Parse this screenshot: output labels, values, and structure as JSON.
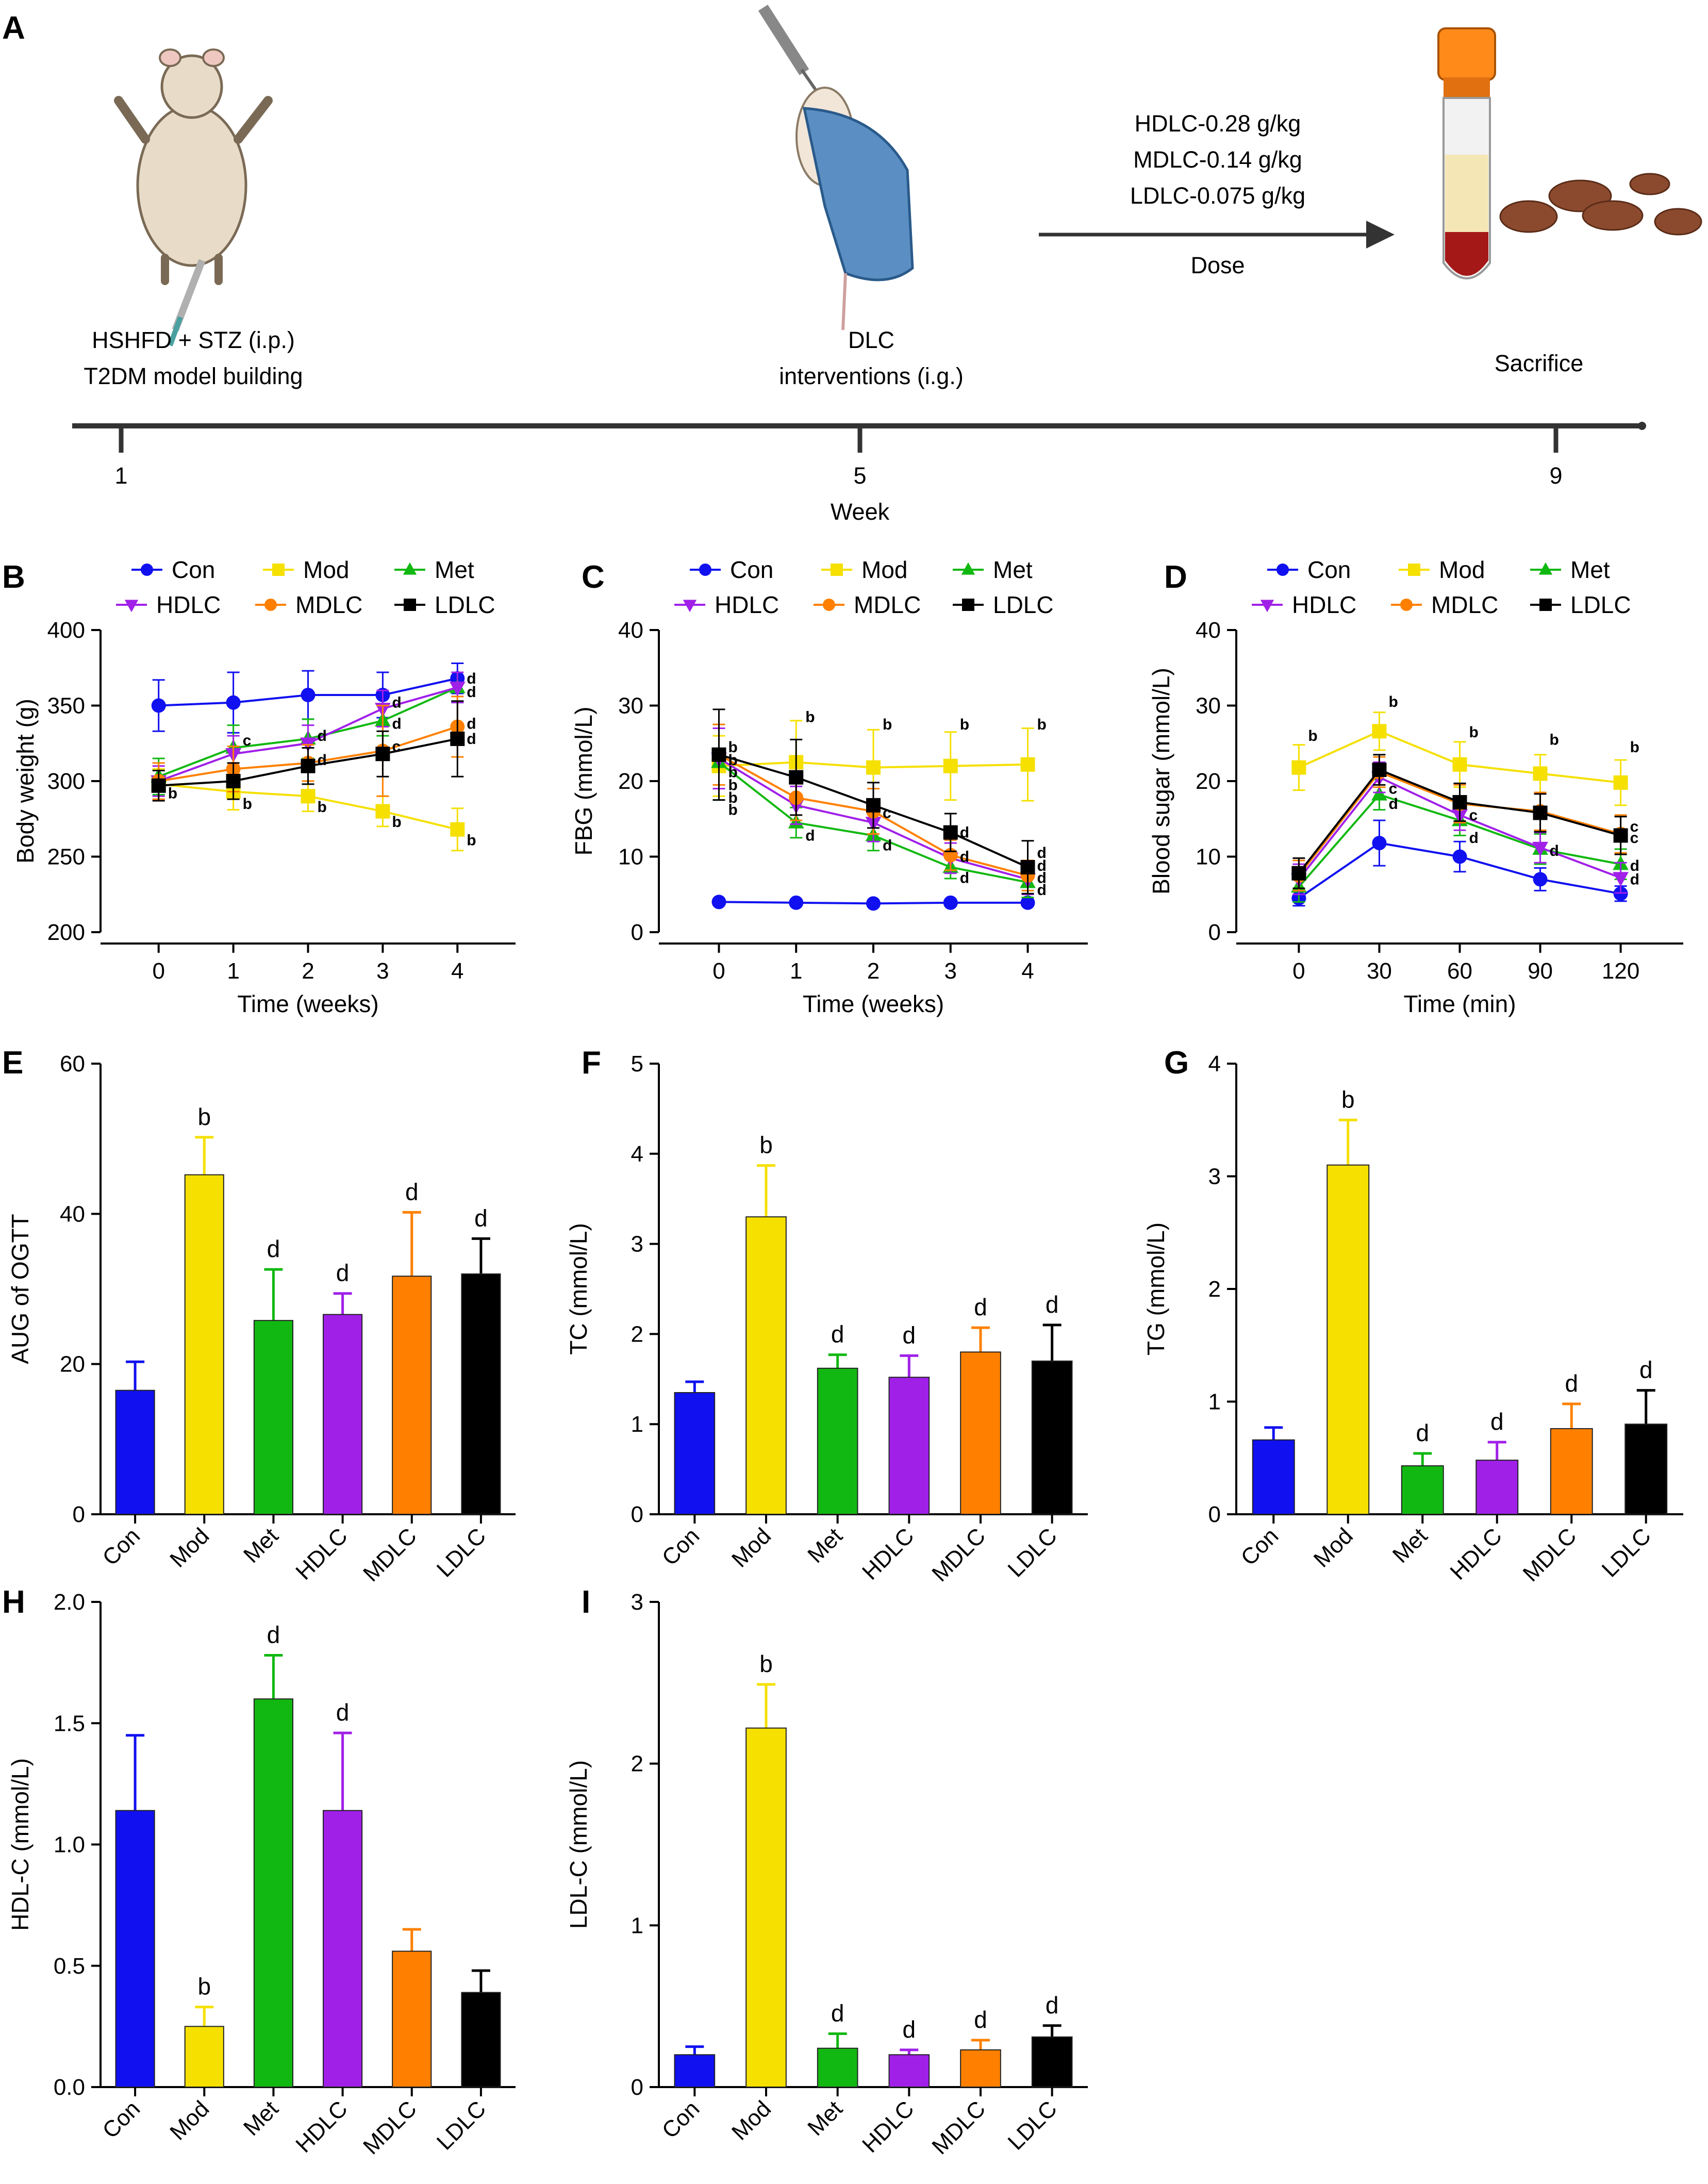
{
  "colors": {
    "Con": "#1010f0",
    "Mod": "#f5e000",
    "Met": "#12b812",
    "HDLC": "#a020e8",
    "MDLC": "#ff8000",
    "LDLC": "#000000"
  },
  "panel_a": {
    "label": "A",
    "step1_line1": "HSHFD + STZ (i.p.)",
    "step1_line2": "T2DM model building",
    "step2_line1": "DLC",
    "step2_line2": "interventions (i.g.)",
    "step3": "Sacrifice",
    "dose_lines": [
      "HDLC-0.28 g/kg",
      "MDLC-0.14 g/kg",
      "LDLC-0.075 g/kg"
    ],
    "dose_label": "Dose",
    "week_ticks": [
      "1",
      "5",
      "9"
    ],
    "week_label": "Week"
  },
  "chart_data": [
    {
      "id": "B",
      "type": "line",
      "xlabel": "Time (weeks)",
      "ylabel": "Body weight (g)",
      "x": [
        0,
        1,
        2,
        3,
        4
      ],
      "xticks": [
        "0",
        "1",
        "2",
        "3",
        "4"
      ],
      "ylim": [
        200,
        400
      ],
      "yticks": [
        200,
        250,
        300,
        350,
        400
      ],
      "series": [
        {
          "name": "Con",
          "marker": "circle",
          "values": [
            350,
            352,
            357,
            357,
            368
          ],
          "err": [
            17,
            20,
            16,
            15,
            10
          ]
        },
        {
          "name": "Mod",
          "marker": "square",
          "values": [
            298,
            293,
            290,
            280,
            268
          ],
          "err": [
            10,
            12,
            10,
            10,
            14
          ]
        },
        {
          "name": "Met",
          "marker": "triangle",
          "values": [
            303,
            322,
            328,
            340,
            362
          ],
          "err": [
            12,
            15,
            13,
            10,
            10
          ]
        },
        {
          "name": "HDLC",
          "marker": "triangle-down",
          "values": [
            300,
            318,
            325,
            348,
            362
          ],
          "err": [
            10,
            12,
            12,
            12,
            10
          ]
        },
        {
          "name": "MDLC",
          "marker": "circle",
          "values": [
            300,
            308,
            312,
            320,
            336
          ],
          "err": [
            12,
            15,
            12,
            30,
            20
          ]
        },
        {
          "name": "LDLC",
          "marker": "square",
          "values": [
            297,
            300,
            310,
            318,
            328
          ],
          "err": [
            10,
            12,
            12,
            15,
            25
          ]
        }
      ],
      "annotations": [
        {
          "x": 0,
          "y": 292,
          "text": "b"
        },
        {
          "x": 1,
          "y": 285,
          "text": "b"
        },
        {
          "x": 2,
          "y": 283,
          "text": "b"
        },
        {
          "x": 3,
          "y": 273,
          "text": "b"
        },
        {
          "x": 4,
          "y": 261,
          "text": "b"
        },
        {
          "x": 1,
          "y": 327,
          "text": "c"
        },
        {
          "x": 2,
          "y": 330,
          "text": "d"
        },
        {
          "x": 2,
          "y": 314,
          "text": "d"
        },
        {
          "x": 3,
          "y": 352,
          "text": "d"
        },
        {
          "x": 3,
          "y": 338,
          "text": "d"
        },
        {
          "x": 3,
          "y": 323,
          "text": "c"
        },
        {
          "x": 4,
          "y": 368,
          "text": "d"
        },
        {
          "x": 4,
          "y": 359,
          "text": "d"
        },
        {
          "x": 4,
          "y": 338,
          "text": "d"
        },
        {
          "x": 4,
          "y": 328,
          "text": "d"
        }
      ]
    },
    {
      "id": "C",
      "type": "line",
      "xlabel": "Time (weeks)",
      "ylabel": "FBG (mmol/L)",
      "x": [
        0,
        1,
        2,
        3,
        4
      ],
      "xticks": [
        "0",
        "1",
        "2",
        "3",
        "4"
      ],
      "ylim": [
        0,
        40
      ],
      "yticks": [
        0,
        10,
        20,
        30,
        40
      ],
      "series": [
        {
          "name": "Con",
          "marker": "circle",
          "values": [
            4.0,
            3.9,
            3.8,
            3.9,
            3.9
          ],
          "err": [
            0.2,
            0.2,
            0.2,
            0.2,
            0.2
          ]
        },
        {
          "name": "Mod",
          "marker": "square",
          "values": [
            22,
            22.5,
            21.8,
            22,
            22.2
          ],
          "err": [
            4,
            5.5,
            5,
            4.5,
            4.8
          ]
        },
        {
          "name": "Met",
          "marker": "triangle",
          "values": [
            22.5,
            14.5,
            12.8,
            8.6,
            6.6
          ],
          "err": [
            5,
            2,
            2,
            1.5,
            2
          ]
        },
        {
          "name": "HDLC",
          "marker": "triangle-down",
          "values": [
            23,
            16.8,
            14.5,
            9.8,
            7.0
          ],
          "err": [
            4,
            2.5,
            2.5,
            2,
            2
          ]
        },
        {
          "name": "MDLC",
          "marker": "circle",
          "values": [
            23.5,
            17.8,
            16,
            10.2,
            7.5
          ],
          "err": [
            4,
            3,
            3,
            2,
            2
          ]
        },
        {
          "name": "LDLC",
          "marker": "square",
          "values": [
            23.5,
            20.5,
            16.8,
            13.2,
            8.6
          ],
          "err": [
            6,
            5,
            3,
            2.5,
            3.5
          ]
        }
      ],
      "annotations": [
        {
          "x": 0,
          "y": 24.5,
          "text": "b"
        },
        {
          "x": 0,
          "y": 22.8,
          "text": "b"
        },
        {
          "x": 0,
          "y": 21.2,
          "text": "b"
        },
        {
          "x": 0,
          "y": 19.5,
          "text": "b"
        },
        {
          "x": 0,
          "y": 17.8,
          "text": "b"
        },
        {
          "x": 0,
          "y": 16.2,
          "text": "b"
        },
        {
          "x": 1,
          "y": 28.5,
          "text": "b"
        },
        {
          "x": 2,
          "y": 27.5,
          "text": "b"
        },
        {
          "x": 3,
          "y": 27.5,
          "text": "b"
        },
        {
          "x": 4,
          "y": 27.5,
          "text": "b"
        },
        {
          "x": 1,
          "y": 12.8,
          "text": "d"
        },
        {
          "x": 2,
          "y": 15.8,
          "text": "c"
        },
        {
          "x": 2,
          "y": 11.5,
          "text": "d"
        },
        {
          "x": 3,
          "y": 13.2,
          "text": "d"
        },
        {
          "x": 3,
          "y": 10.0,
          "text": "d"
        },
        {
          "x": 3,
          "y": 7.2,
          "text": "d"
        },
        {
          "x": 4,
          "y": 10.5,
          "text": "d"
        },
        {
          "x": 4,
          "y": 8.8,
          "text": "d"
        },
        {
          "x": 4,
          "y": 7.2,
          "text": "d"
        },
        {
          "x": 4,
          "y": 5.6,
          "text": "d"
        }
      ]
    },
    {
      "id": "D",
      "type": "line",
      "xlabel": "Time (min)",
      "ylabel": "Blood sugar (mmol/L)",
      "x": [
        0,
        30,
        60,
        90,
        120
      ],
      "xticks": [
        "0",
        "30",
        "60",
        "90",
        "120"
      ],
      "ylim": [
        0,
        40
      ],
      "yticks": [
        0,
        10,
        20,
        30,
        40
      ],
      "series": [
        {
          "name": "Con",
          "marker": "circle",
          "values": [
            4.5,
            11.8,
            10,
            7,
            5.1
          ],
          "err": [
            1,
            3,
            2,
            1.5,
            1
          ]
        },
        {
          "name": "Mod",
          "marker": "square",
          "values": [
            21.8,
            26.6,
            22.2,
            21,
            19.8
          ],
          "err": [
            3,
            2.5,
            3,
            2.5,
            3
          ]
        },
        {
          "name": "Met",
          "marker": "triangle",
          "values": [
            6,
            18.2,
            14.8,
            11,
            9
          ],
          "err": [
            2,
            2,
            2,
            2,
            2
          ]
        },
        {
          "name": "HDLC",
          "marker": "triangle-down",
          "values": [
            7,
            20.5,
            15.5,
            11.2,
            7.2
          ],
          "err": [
            2,
            2,
            2,
            2,
            2
          ]
        },
        {
          "name": "MDLC",
          "marker": "circle",
          "values": [
            7.5,
            21.2,
            17,
            16,
            13
          ],
          "err": [
            2,
            2,
            2.5,
            2.5,
            2.5
          ]
        },
        {
          "name": "LDLC",
          "marker": "square",
          "values": [
            7.8,
            21.5,
            17.2,
            15.8,
            12.8
          ],
          "err": [
            2,
            2,
            2.5,
            2.5,
            2.5
          ]
        }
      ],
      "annotations": [
        {
          "x": 0,
          "y": 26,
          "text": "b"
        },
        {
          "x": 30,
          "y": 30.5,
          "text": "b"
        },
        {
          "x": 60,
          "y": 26.5,
          "text": "b"
        },
        {
          "x": 90,
          "y": 25.5,
          "text": "b"
        },
        {
          "x": 120,
          "y": 24.5,
          "text": "b"
        },
        {
          "x": 30,
          "y": 19,
          "text": "c"
        },
        {
          "x": 30,
          "y": 17,
          "text": "d"
        },
        {
          "x": 60,
          "y": 15.5,
          "text": "c"
        },
        {
          "x": 60,
          "y": 12.5,
          "text": "d"
        },
        {
          "x": 90,
          "y": 10.8,
          "text": "d"
        },
        {
          "x": 120,
          "y": 14,
          "text": "c"
        },
        {
          "x": 120,
          "y": 12.5,
          "text": "c"
        },
        {
          "x": 120,
          "y": 8.8,
          "text": "d"
        },
        {
          "x": 120,
          "y": 7,
          "text": "d"
        }
      ]
    },
    {
      "id": "E",
      "type": "bar",
      "ylabel": "AUG of OGTT",
      "ylim": [
        0,
        60
      ],
      "yticks": [
        0,
        20,
        40,
        60
      ],
      "categories": [
        "Con",
        "Mod",
        "Met",
        "HDLC",
        "MDLC",
        "LDLC"
      ],
      "values": [
        16.5,
        45.2,
        25.8,
        26.6,
        31.7,
        32
      ],
      "err": [
        3.8,
        5,
        6.8,
        2.8,
        8.5,
        4.7
      ],
      "labels": [
        "",
        "b",
        "d",
        "d",
        "d",
        "d"
      ]
    },
    {
      "id": "F",
      "type": "bar",
      "ylabel": "TC (mmol/L)",
      "ylim": [
        0,
        5
      ],
      "yticks": [
        0,
        1,
        2,
        3,
        4,
        5
      ],
      "categories": [
        "Con",
        "Mod",
        "Met",
        "HDLC",
        "MDLC",
        "LDLC"
      ],
      "values": [
        1.35,
        3.3,
        1.62,
        1.52,
        1.8,
        1.7
      ],
      "err": [
        0.12,
        0.57,
        0.15,
        0.24,
        0.27,
        0.4
      ],
      "labels": [
        "",
        "b",
        "d",
        "d",
        "d",
        "d"
      ]
    },
    {
      "id": "G",
      "type": "bar",
      "ylabel": "TG (mmol/L)",
      "ylim": [
        0,
        4
      ],
      "yticks": [
        0,
        1,
        2,
        3,
        4
      ],
      "categories": [
        "Con",
        "Mod",
        "Met",
        "HDLC",
        "MDLC",
        "LDLC"
      ],
      "values": [
        0.66,
        3.1,
        0.43,
        0.48,
        0.76,
        0.8
      ],
      "err": [
        0.11,
        0.4,
        0.11,
        0.16,
        0.22,
        0.3
      ],
      "labels": [
        "",
        "b",
        "d",
        "d",
        "d",
        "d"
      ]
    },
    {
      "id": "H",
      "type": "bar",
      "ylabel": "HDL-C (mmol/L)",
      "ylim": [
        0,
        2.0
      ],
      "yticks": [
        "0.0",
        "0.5",
        "1.0",
        "1.5",
        "2.0"
      ],
      "categories": [
        "Con",
        "Mod",
        "Met",
        "HDLC",
        "MDLC",
        "LDLC"
      ],
      "values": [
        1.14,
        0.25,
        1.6,
        1.14,
        0.56,
        0.39
      ],
      "err": [
        0.31,
        0.08,
        0.18,
        0.32,
        0.09,
        0.09
      ],
      "labels": [
        "",
        "b",
        "d",
        "d",
        "",
        ""
      ]
    },
    {
      "id": "I",
      "type": "bar",
      "ylabel": "LDL-C (mmol/L)",
      "ylim": [
        0,
        3
      ],
      "yticks": [
        0,
        1,
        2,
        3
      ],
      "categories": [
        "Con",
        "Mod",
        "Met",
        "HDLC",
        "MDLC",
        "LDLC"
      ],
      "values": [
        0.2,
        2.22,
        0.24,
        0.2,
        0.23,
        0.31
      ],
      "err": [
        0.05,
        0.27,
        0.09,
        0.03,
        0.06,
        0.07
      ],
      "labels": [
        "",
        "b",
        "d",
        "d",
        "d",
        "d"
      ]
    }
  ]
}
